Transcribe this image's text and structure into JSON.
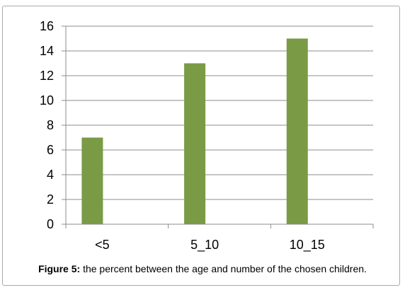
{
  "chart_data": {
    "type": "bar",
    "categories": [
      "<5",
      "5_10",
      "10_15"
    ],
    "values": [
      7,
      13,
      15
    ],
    "title": "",
    "xlabel": "",
    "ylabel": "",
    "ylim": [
      0,
      16
    ],
    "yticks": [
      0,
      2,
      4,
      6,
      8,
      10,
      12,
      14,
      16
    ],
    "grid": true,
    "legend": false,
    "bar_color": "#7a9a45",
    "grid_color": "#8c8c8c",
    "axis_color": "#8c8c8c"
  },
  "caption": {
    "label": "Figure 5:",
    "text": " the percent between the age and number of the chosen children."
  }
}
